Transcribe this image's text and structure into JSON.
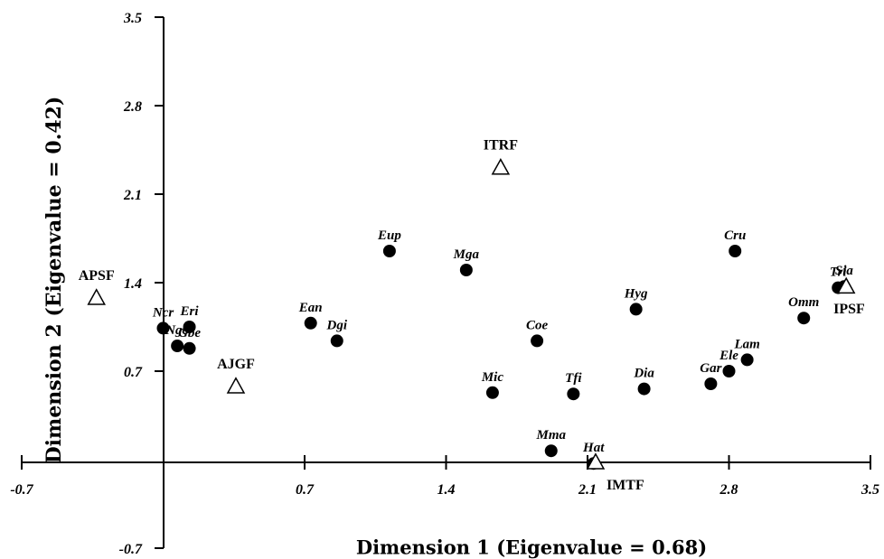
{
  "chart_data": {
    "type": "scatter",
    "xlabel": "Dimension 1 (Eigenvalue = 0.68)",
    "ylabel": "Dimension 2 (Eigenvalue = 0.42)",
    "xlim": [
      -0.7,
      3.5
    ],
    "ylim": [
      -0.7,
      3.5
    ],
    "xticks": [
      "-0.7",
      "0.7",
      "1.4",
      "2.1",
      "2.8",
      "3.5"
    ],
    "yticks": [
      "-0.7",
      "0.7",
      "1.4",
      "2.1",
      "2.8",
      "3.5"
    ],
    "grid": false,
    "series": [
      {
        "name": "",
        "marker": "filled-circle",
        "points": [
          {
            "label": "Ncr",
            "x": 0.0,
            "y": 1.04
          },
          {
            "label": "Eri",
            "x": 0.13,
            "y": 1.05
          },
          {
            "label": "Ngo",
            "x": 0.07,
            "y": 0.9
          },
          {
            "label": "Gbe",
            "x": 0.13,
            "y": 0.88
          },
          {
            "label": "Ean",
            "x": 0.73,
            "y": 1.08
          },
          {
            "label": "Dgi",
            "x": 0.86,
            "y": 0.94
          },
          {
            "label": "Eup",
            "x": 1.12,
            "y": 1.65
          },
          {
            "label": "Mga",
            "x": 1.5,
            "y": 1.5
          },
          {
            "label": "Coe",
            "x": 1.85,
            "y": 0.94
          },
          {
            "label": "Mic",
            "x": 1.63,
            "y": 0.53
          },
          {
            "label": "Tfi",
            "x": 2.03,
            "y": 0.52
          },
          {
            "label": "Mma",
            "x": 1.92,
            "y": 0.07
          },
          {
            "label": "Hat",
            "x": 2.13,
            "y": -0.03
          },
          {
            "label": "Hyg",
            "x": 2.34,
            "y": 1.19
          },
          {
            "label": "Dia",
            "x": 2.38,
            "y": 0.56
          },
          {
            "label": "Cru",
            "x": 2.83,
            "y": 1.65
          },
          {
            "label": "Gar",
            "x": 2.71,
            "y": 0.6
          },
          {
            "label": "Ele",
            "x": 2.8,
            "y": 0.7
          },
          {
            "label": "Lam",
            "x": 2.89,
            "y": 0.79
          },
          {
            "label": "Omm",
            "x": 3.17,
            "y": 1.12
          },
          {
            "label": "Tri",
            "x": 3.34,
            "y": 1.36
          },
          {
            "label": "Sia",
            "x": 3.37,
            "y": 1.37
          }
        ]
      },
      {
        "name": "",
        "marker": "open-triangle",
        "points": [
          {
            "label": "APSF",
            "x": -0.33,
            "y": 1.28
          },
          {
            "label": "AJGF",
            "x": 0.36,
            "y": 0.58
          },
          {
            "label": "ITRF",
            "x": 1.67,
            "y": 2.31
          },
          {
            "label": "IMTF",
            "x": 2.14,
            "y": -0.02
          },
          {
            "label": "IPSF",
            "x": 3.38,
            "y": 1.37
          }
        ]
      }
    ]
  }
}
